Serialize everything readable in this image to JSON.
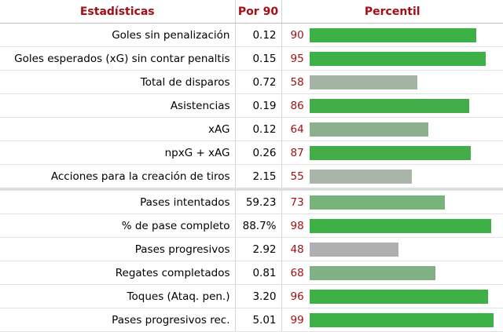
{
  "table": {
    "headers": {
      "stat": "Estadísticas",
      "per90": "Por 90",
      "percentile": "Percentil"
    },
    "groups": [
      [
        {
          "stat": "Goles sin penalización",
          "per90": "0.12",
          "pct": 90,
          "color": "#3db146"
        },
        {
          "stat": "Goles esperados (xG) sin contar penaltis",
          "per90": "0.15",
          "pct": 95,
          "color": "#3db146"
        },
        {
          "stat": "Total de disparos",
          "per90": "0.72",
          "pct": 58,
          "color": "#a4b3a4"
        },
        {
          "stat": "Asistencias",
          "per90": "0.19",
          "pct": 86,
          "color": "#42ad48"
        },
        {
          "stat": "xAG",
          "per90": "0.12",
          "pct": 64,
          "color": "#8bb08b"
        },
        {
          "stat": "npxG + xAG",
          "per90": "0.26",
          "pct": 87,
          "color": "#44ad49"
        },
        {
          "stat": "Acciones para la creación de tiros",
          "per90": "2.15",
          "pct": 55,
          "color": "#a8b5a8"
        }
      ],
      [
        {
          "stat": "Pases intentados",
          "per90": "59.23",
          "pct": 73,
          "color": "#77b37b"
        },
        {
          "stat": "% de pase completo",
          "per90": "88.7%",
          "pct": 98,
          "color": "#3db146"
        },
        {
          "stat": "Pases progresivos",
          "per90": "2.92",
          "pct": 48,
          "color": "#b0aeae"
        },
        {
          "stat": "Regates completados",
          "per90": "0.81",
          "pct": 68,
          "color": "#82b085"
        },
        {
          "stat": "Toques (Ataq. pen.)",
          "per90": "3.20",
          "pct": 96,
          "color": "#3db146"
        },
        {
          "stat": "Pases progresivos rec.",
          "per90": "5.01",
          "pct": 99,
          "color": "#3db146"
        }
      ]
    ]
  }
}
